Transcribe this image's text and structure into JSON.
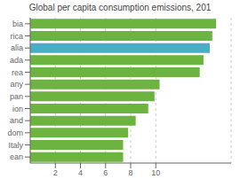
{
  "chart_data": {
    "type": "bar",
    "orientation": "horizontal",
    "title": "Global per capita consumption emissions, 201",
    "categories": [
      "bia",
      "rica",
      "alia",
      "ada",
      "rea",
      "any",
      "pan",
      "ion",
      "and",
      "dom",
      "Italy",
      "ean"
    ],
    "values": [
      14.8,
      14.5,
      14.3,
      13.8,
      13.5,
      10.3,
      9.9,
      9.4,
      8.4,
      7.8,
      7.4,
      7.4
    ],
    "colors": [
      "#6db33f",
      "#6db33f",
      "#4bacc6",
      "#6db33f",
      "#6db33f",
      "#6db33f",
      "#6db33f",
      "#6db33f",
      "#6db33f",
      "#6db33f",
      "#6db33f",
      "#6db33f"
    ],
    "xlim": [
      0,
      16
    ],
    "xticks": [
      2,
      4,
      6,
      8,
      10
    ],
    "grid": true
  }
}
